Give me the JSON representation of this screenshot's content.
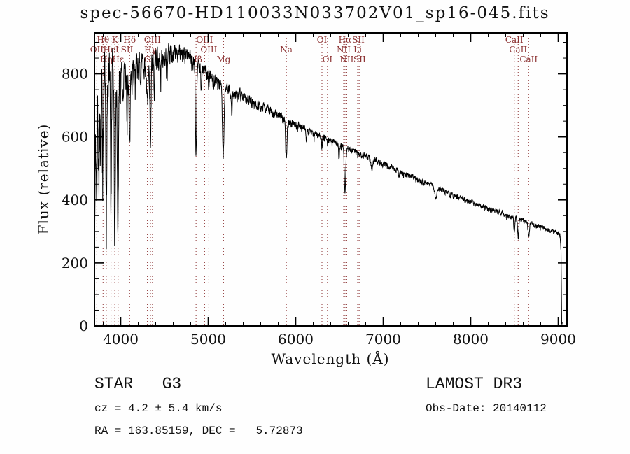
{
  "title": "spec-56670-HD110033N033702V01_sp16-045.fits",
  "chart_data": {
    "type": "line",
    "title": "spec-56670-HD110033N033702V01_sp16-045.fits",
    "xlabel": "Wavelength (Å)",
    "ylabel": "Flux (relative)",
    "xlim": [
      3700,
      9100
    ],
    "ylim": [
      0,
      930
    ],
    "x_major_ticks": [
      4000,
      5000,
      6000,
      7000,
      8000,
      9000
    ],
    "x_minor_step": 200,
    "y_major_ticks": [
      0,
      200,
      400,
      600,
      800
    ],
    "y_minor_step": 50,
    "grid": false,
    "line_color": "#000000",
    "marker_color": "#8b3030",
    "series": [
      {
        "name": "spectrum",
        "color": "#000000",
        "envelope": [
          [
            3700,
            10
          ],
          [
            3704,
            300
          ],
          [
            3710,
            560
          ],
          [
            3720,
            650
          ],
          [
            3740,
            690
          ],
          [
            3770,
            720
          ],
          [
            3800,
            745
          ],
          [
            3850,
            762
          ],
          [
            3900,
            772
          ],
          [
            3950,
            782
          ],
          [
            4000,
            800
          ],
          [
            4050,
            806
          ],
          [
            4100,
            812
          ],
          [
            4150,
            820
          ],
          [
            4200,
            830
          ],
          [
            4250,
            836
          ],
          [
            4300,
            842
          ],
          [
            4350,
            848
          ],
          [
            4400,
            856
          ],
          [
            4450,
            860
          ],
          [
            4500,
            862
          ],
          [
            4550,
            866
          ],
          [
            4600,
            870
          ],
          [
            4650,
            868
          ],
          [
            4700,
            864
          ],
          [
            4750,
            858
          ],
          [
            4800,
            852
          ],
          [
            4850,
            842
          ],
          [
            4900,
            830
          ],
          [
            4950,
            815
          ],
          [
            5000,
            800
          ],
          [
            5050,
            788
          ],
          [
            5100,
            778
          ],
          [
            5150,
            768
          ],
          [
            5200,
            758
          ],
          [
            5300,
            742
          ],
          [
            5400,
            728
          ],
          [
            5500,
            713
          ],
          [
            5600,
            699
          ],
          [
            5700,
            685
          ],
          [
            5800,
            670
          ],
          [
            5900,
            652
          ],
          [
            6000,
            640
          ],
          [
            6100,
            628
          ],
          [
            6200,
            614
          ],
          [
            6300,
            601
          ],
          [
            6400,
            589
          ],
          [
            6500,
            576
          ],
          [
            6600,
            563
          ],
          [
            6700,
            551
          ],
          [
            6800,
            540
          ],
          [
            6900,
            528
          ],
          [
            7000,
            515
          ],
          [
            7100,
            503
          ],
          [
            7200,
            491
          ],
          [
            7300,
            478
          ],
          [
            7400,
            466
          ],
          [
            7500,
            453
          ],
          [
            7600,
            441
          ],
          [
            7700,
            428
          ],
          [
            7800,
            416
          ],
          [
            7900,
            405
          ],
          [
            8000,
            394
          ],
          [
            8100,
            384
          ],
          [
            8200,
            374
          ],
          [
            8300,
            364
          ],
          [
            8400,
            354
          ],
          [
            8500,
            344
          ],
          [
            8600,
            334
          ],
          [
            8700,
            325
          ],
          [
            8800,
            315
          ],
          [
            8900,
            305
          ],
          [
            9000,
            295
          ],
          [
            9020,
            288
          ],
          [
            9032,
            240
          ],
          [
            9040,
            10
          ]
        ],
        "absorption_features": [
          [
            3727,
            120,
            5
          ],
          [
            3750,
            200,
            5
          ],
          [
            3771,
            220,
            5
          ],
          [
            3798,
            300,
            6
          ],
          [
            3835,
            340,
            6
          ],
          [
            3889,
            380,
            6
          ],
          [
            3933,
            545,
            6
          ],
          [
            3968,
            500,
            6
          ],
          [
            4026,
            120,
            5
          ],
          [
            4072,
            120,
            5
          ],
          [
            4102,
            255,
            7
          ],
          [
            4227,
            90,
            5
          ],
          [
            4305,
            130,
            10
          ],
          [
            4340,
            245,
            7
          ],
          [
            4383,
            110,
            5
          ],
          [
            4455,
            90,
            5
          ],
          [
            4531,
            80,
            5
          ],
          [
            4861,
            290,
            7
          ],
          [
            4920,
            70,
            5
          ],
          [
            5007,
            40,
            4
          ],
          [
            5167,
            120,
            7
          ],
          [
            5175,
            140,
            8
          ],
          [
            5270,
            70,
            6
          ],
          [
            5893,
            115,
            8
          ],
          [
            6122,
            40,
            5
          ],
          [
            6300,
            35,
            4
          ],
          [
            6363,
            25,
            4
          ],
          [
            6495,
            50,
            5
          ],
          [
            6563,
            150,
            7
          ],
          [
            6870,
            35,
            8
          ],
          [
            7180,
            20,
            6
          ],
          [
            7600,
            35,
            10
          ],
          [
            8498,
            45,
            6
          ],
          [
            8542,
            55,
            7
          ],
          [
            8662,
            50,
            7
          ]
        ],
        "noise_profile": [
          [
            3700,
            120
          ],
          [
            3800,
            115
          ],
          [
            3900,
            90
          ],
          [
            4000,
            55
          ],
          [
            4100,
            45
          ],
          [
            4200,
            38
          ],
          [
            4300,
            34
          ],
          [
            4500,
            30
          ],
          [
            4700,
            26
          ],
          [
            5000,
            20
          ],
          [
            5300,
            16
          ],
          [
            5600,
            13
          ],
          [
            5900,
            12
          ],
          [
            6200,
            10
          ],
          [
            6500,
            9
          ],
          [
            7000,
            8
          ],
          [
            7500,
            7
          ],
          [
            8000,
            7
          ],
          [
            8500,
            7
          ],
          [
            9000,
            6
          ]
        ]
      }
    ],
    "line_markers": [
      {
        "wavelength": 3727,
        "label": "OII",
        "row": 2
      },
      {
        "wavelength": 3798,
        "label": "Hθ",
        "row": 1
      },
      {
        "wavelength": 3835,
        "label": "Hη",
        "row": 3
      },
      {
        "wavelength": 3889,
        "label": "HeI",
        "row": 2
      },
      {
        "wavelength": 3933,
        "label": "K",
        "row": 1
      },
      {
        "wavelength": 3970,
        "label": "Hε",
        "row": 3
      },
      {
        "wavelength": 4072,
        "label": "SII",
        "row": 2
      },
      {
        "wavelength": 4102,
        "label": "Hδ",
        "row": 1
      },
      {
        "wavelength": 4305,
        "label": "G",
        "row": 3
      },
      {
        "wavelength": 4340,
        "label": "Hγ",
        "row": 2
      },
      {
        "wavelength": 4363,
        "label": "OIII",
        "row": 1
      },
      {
        "wavelength": 4861,
        "label": "Hβ",
        "row": 3
      },
      {
        "wavelength": 4959,
        "label": "OIII",
        "row": 1
      },
      {
        "wavelength": 5007,
        "label": "OIII",
        "row": 2
      },
      {
        "wavelength": 5175,
        "label": "Mg",
        "row": 3
      },
      {
        "wavelength": 5893,
        "label": "Na",
        "row": 2
      },
      {
        "wavelength": 6300,
        "label": "OI",
        "row": 1
      },
      {
        "wavelength": 6363,
        "label": "OI",
        "row": 3
      },
      {
        "wavelength": 6548,
        "label": "NII",
        "row": 2
      },
      {
        "wavelength": 6563,
        "label": "Hα",
        "row": 1
      },
      {
        "wavelength": 6583,
        "label": "NII",
        "row": 3
      },
      {
        "wavelength": 6708,
        "label": "Li",
        "row": 2
      },
      {
        "wavelength": 6716,
        "label": "SII",
        "row": 1
      },
      {
        "wavelength": 6731,
        "label": "SII",
        "row": 3
      },
      {
        "wavelength": 8498,
        "label": "CaII",
        "row": 1
      },
      {
        "wavelength": 8542,
        "label": "CaII",
        "row": 2
      },
      {
        "wavelength": 8662,
        "label": "CaII",
        "row": 3
      }
    ]
  },
  "footer": {
    "class_label": "STAR   G3",
    "survey": "LAMOST DR3",
    "cz": "cz = 4.2 ± 5.4 km/s",
    "obs_date": "Obs-Date: 20140112",
    "coords": "RA = 163.85159, DEC =   5.72873"
  }
}
